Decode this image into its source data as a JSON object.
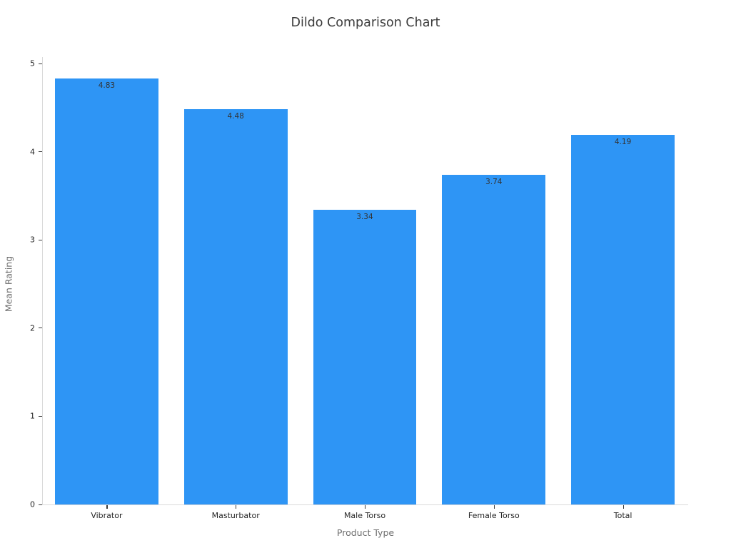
{
  "title": "Dildo Comparison Chart",
  "chart_data": {
    "type": "bar",
    "title": "Dildo Comparison Chart",
    "xlabel": "Product Type",
    "ylabel": "Mean Rating",
    "categories": [
      "Vibrator",
      "Masturbator",
      "Male Torso",
      "Female Torso",
      "Total"
    ],
    "values": [
      4.83,
      4.48,
      3.34,
      3.74,
      4.19
    ],
    "value_labels": [
      "4.83",
      "4.48",
      "3.34",
      "3.74",
      "4.19"
    ],
    "yticks": [
      0,
      1,
      2,
      3,
      4,
      5
    ],
    "ytick_labels": [
      "0",
      "1",
      "2",
      "3",
      "4",
      "5"
    ],
    "ylim": [
      0,
      5.07
    ],
    "grid": false,
    "legend_position": "none",
    "colors": {
      "bar_fill": "#2E95F5",
      "title_text": "#3b3b3b",
      "tick_text": "#262626",
      "axis_label_text": "#6e6e6e",
      "value_label_text": "#333333",
      "spine": "#d9d9d9"
    }
  }
}
